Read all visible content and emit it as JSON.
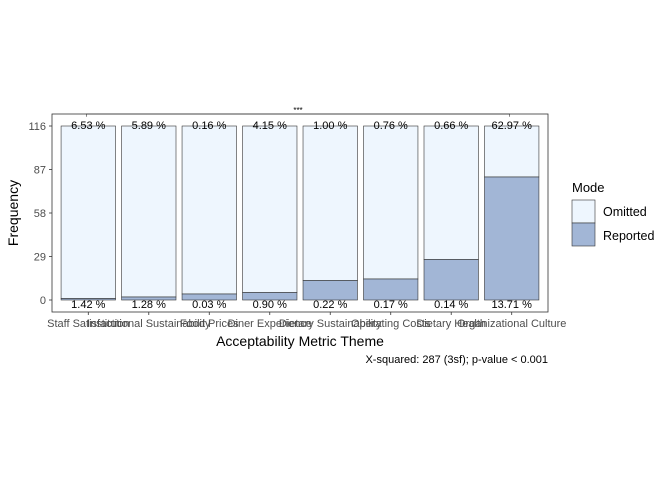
{
  "chart_data": {
    "type": "bar",
    "stacked": true,
    "categories": [
      "Staff Satisfaction",
      "Institutional Sustainability",
      "Food Prices",
      "Diner Experience",
      "Dietary Sustainability",
      "Operating Costs",
      "Dietary Health",
      "Organizational Culture"
    ],
    "totals": [
      116,
      116,
      116,
      116,
      116,
      116,
      116,
      116
    ],
    "series": [
      {
        "name": "Reported",
        "values": [
          1,
          2,
          4,
          5,
          13,
          14,
          27,
          82
        ],
        "color": "#a2b6d6"
      },
      {
        "name": "Omitted",
        "values": [
          115,
          114,
          112,
          111,
          103,
          102,
          89,
          34
        ],
        "color": "#eef6fe"
      }
    ],
    "top_labels": [
      "6.53 %",
      "5.89 %",
      "0.16 %",
      "4.15 %",
      "1.00 %",
      "0.76 %",
      "0.66 %",
      "62.97 %"
    ],
    "bottom_labels": [
      "1.42 %",
      "1.28 %",
      "0.03 %",
      "0.90 %",
      "0.22 %",
      "0.17 %",
      "0.14 %",
      "13.71 %"
    ],
    "significance_mark": "***",
    "y_ticks": [
      0,
      29,
      58,
      87,
      116
    ],
    "ylim": [
      -8,
      124
    ],
    "xlabel": "Acceptability Metric Theme",
    "ylabel": "Frequency",
    "legend": {
      "title": "Mode",
      "placement": "right",
      "entries": [
        "Omitted",
        "Reported"
      ]
    },
    "caption": "X-squared: 287 (3sf); p-value < 0.001",
    "grid": false,
    "panel_border": true
  }
}
